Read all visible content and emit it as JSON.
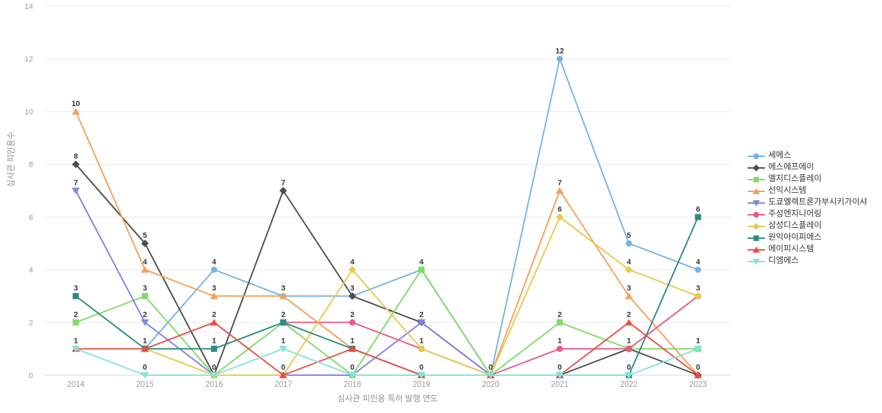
{
  "chart_data": {
    "type": "line",
    "title": "",
    "xlabel": "심사관 피인용 특허 발행 연도",
    "ylabel": "심사관 피인용수",
    "x": [
      "2014",
      "2015",
      "2016",
      "2017",
      "2018",
      "2019",
      "2020",
      "2021",
      "2022",
      "2023"
    ],
    "ylim": [
      0,
      14
    ],
    "y_ticks": [
      0,
      2,
      4,
      6,
      8,
      10,
      12,
      14
    ],
    "grid": true,
    "legend_position": "right",
    "data_label_color": "#333333",
    "tick_label_color": "#999999",
    "gridline_color": "#e9e9e9",
    "axisline_color": "#ccd5e8",
    "series": [
      {
        "name": "세메스",
        "color": "#76b2e8",
        "marker": "circle",
        "values": [
          null,
          1,
          4,
          3,
          3,
          4,
          0,
          12,
          5,
          4
        ]
      },
      {
        "name": "에스에프에이",
        "color": "#4d4d4d",
        "marker": "diamond",
        "values": [
          8,
          5,
          0,
          7,
          3,
          2,
          0,
          0,
          1,
          0
        ]
      },
      {
        "name": "엘지디스플레이",
        "color": "#82d96a",
        "marker": "square",
        "values": [
          2,
          3,
          0,
          2,
          0,
          4,
          0,
          2,
          1,
          1
        ]
      },
      {
        "name": "선익시스템",
        "color": "#f5a05a",
        "marker": "triangle-up",
        "values": [
          10,
          4,
          3,
          3,
          1,
          0,
          0,
          7,
          3,
          0
        ]
      },
      {
        "name": "도쿄엘렉트론가부시키가이샤",
        "color": "#8182e3",
        "marker": "triangle-down",
        "values": [
          7,
          2,
          0,
          0,
          0,
          2,
          0,
          null,
          null,
          null
        ]
      },
      {
        "name": "주성엔지니어링",
        "color": "#ea5786",
        "marker": "circle",
        "values": [
          null,
          null,
          null,
          2,
          2,
          1,
          0,
          1,
          1,
          3
        ]
      },
      {
        "name": "삼성디스플레이",
        "color": "#e3cb4e",
        "marker": "diamond",
        "values": [
          null,
          1,
          0,
          0,
          4,
          1,
          0,
          6,
          4,
          3
        ]
      },
      {
        "name": "원익아이피에스",
        "color": "#2e8b82",
        "marker": "square",
        "values": [
          3,
          1,
          1,
          2,
          1,
          0,
          0,
          0,
          0,
          6
        ]
      },
      {
        "name": "에이피시스템",
        "color": "#ea4f44",
        "marker": "triangle-up",
        "values": [
          1,
          1,
          2,
          0,
          1,
          0,
          0,
          0,
          2,
          0
        ]
      },
      {
        "name": "디엠에스",
        "color": "#84e3d8",
        "marker": "triangle-down",
        "values": [
          1,
          0,
          0,
          1,
          0,
          0,
          0,
          0,
          0,
          1
        ]
      }
    ]
  }
}
